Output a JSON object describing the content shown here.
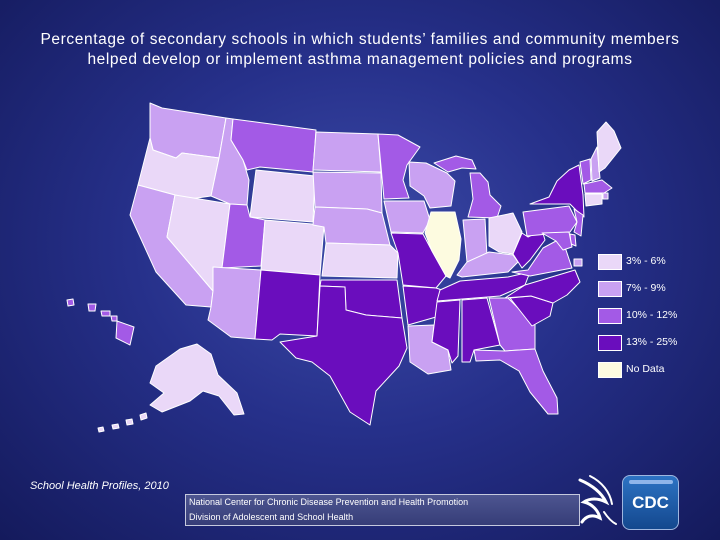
{
  "title": "Percentage of secondary schools in which students’ families and community members helped develop or implement asthma management policies and programs",
  "source": "School Health Profiles, 2010",
  "footer": {
    "line1": "National Center for Chronic Disease Prevention and Health Promotion",
    "line2": "Division of Adolescent and School Health"
  },
  "logo": {
    "agency": "CDC",
    "hhs_icon": "hhs-eagle-icon"
  },
  "colors": {
    "border": "#ffffff",
    "c1": "#ead8f8",
    "c2": "#c9a1f2",
    "c3": "#a35ae6",
    "c4": "#6a0dbd",
    "nodata": "#fdfbe0"
  },
  "legend": [
    {
      "label": "3% - 6%",
      "class": "c1"
    },
    {
      "label": "7% - 9%",
      "class": "c2"
    },
    {
      "label": "10% - 12%",
      "class": "c3"
    },
    {
      "label": "13% - 25%",
      "class": "c4"
    },
    {
      "label": "No Data",
      "class": "nodata"
    }
  ],
  "states": {
    "WA": "c2",
    "OR": "c1",
    "CA": "c2",
    "NV": "c1",
    "ID": "c2",
    "MT": "c3",
    "WY": "c1",
    "UT": "c3",
    "AZ": "c2",
    "CO": "c1",
    "NM": "c4",
    "ND": "c2",
    "SD": "c2",
    "NE": "c2",
    "KS": "c1",
    "OK": "c4",
    "TX": "c4",
    "MN": "c3",
    "IA": "c2",
    "MO": "c4",
    "AR": "c4",
    "LA": "c2",
    "WI": "c2",
    "IL": "nodata",
    "MI": "c3",
    "IN": "c2",
    "OH": "c1",
    "KY": "c2",
    "TN": "c4",
    "MS": "c4",
    "AL": "c4",
    "GA": "c3",
    "FL": "c3",
    "SC": "c4",
    "NC": "c4",
    "VA": "c3",
    "WV": "c4",
    "PA": "c3",
    "NY": "c4",
    "ME": "c1",
    "VT": "c3",
    "NH": "c2",
    "MA": "c3",
    "CT": "c1",
    "RI": "c2",
    "NJ": "c3",
    "DE": "c3",
    "MD": "c3",
    "DC": "c2",
    "AK": "c1",
    "HI": "c3"
  }
}
